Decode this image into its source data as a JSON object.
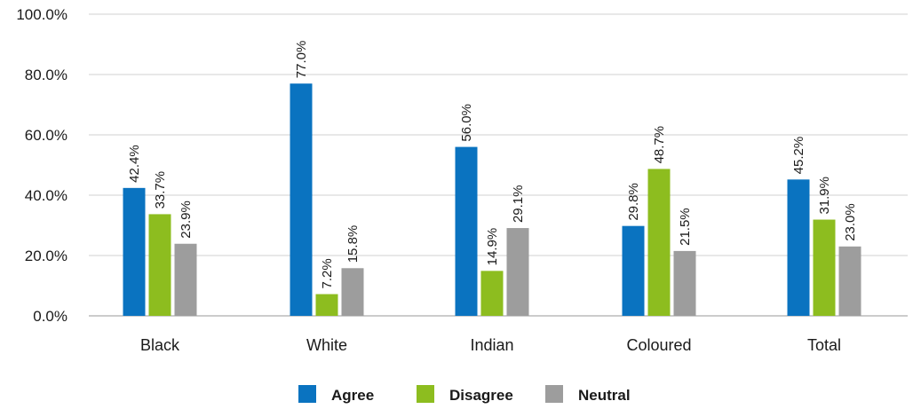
{
  "chart_data": {
    "type": "bar",
    "title": "",
    "xlabel": "",
    "ylabel": "",
    "ylim": [
      0,
      100
    ],
    "y_ticks": [
      0,
      20,
      40,
      60,
      80,
      100
    ],
    "y_tick_labels": [
      "0.0%",
      "20.0%",
      "40.0%",
      "60.0%",
      "80.0%",
      "100.0%"
    ],
    "categories": [
      "Black",
      "White",
      "Indian",
      "Coloured",
      "Total"
    ],
    "series": [
      {
        "name": "Agree",
        "color": "#0a73c0",
        "values": [
          42.4,
          77.0,
          56.0,
          29.8,
          45.2
        ],
        "labels": [
          "42.4%",
          "77.0%",
          "56.0%",
          "29.8%",
          "45.2%"
        ]
      },
      {
        "name": "Disagree",
        "color": "#8dbd1f",
        "values": [
          33.7,
          7.2,
          14.9,
          48.7,
          31.9
        ],
        "labels": [
          "33.7%",
          "7.2%",
          "14.9%",
          "48.7%",
          "31.9%"
        ]
      },
      {
        "name": "Neutral",
        "color": "#9d9d9d",
        "values": [
          23.9,
          15.8,
          29.1,
          21.5,
          23.0
        ],
        "labels": [
          "23.9%",
          "15.8%",
          "29.1%",
          "21.5%",
          "23.0%"
        ]
      }
    ],
    "grid": true,
    "legend_position": "bottom-center"
  }
}
